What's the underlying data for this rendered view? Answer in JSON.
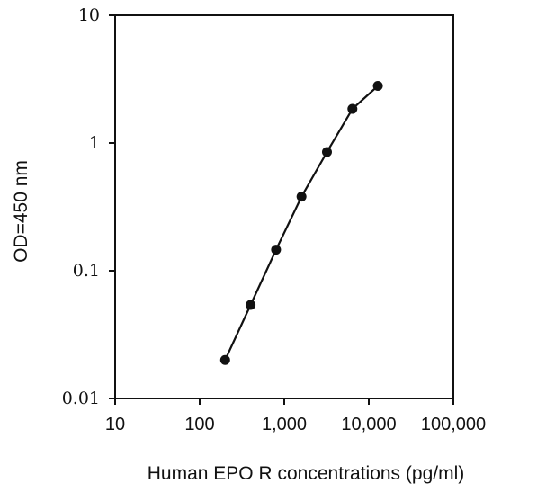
{
  "chart_data": {
    "type": "line",
    "title": "",
    "xlabel": "Human EPO R concentrations (pg/ml)",
    "ylabel": "OD=450 nm",
    "x_scale": "log",
    "y_scale": "log",
    "xlim": [
      10,
      100000
    ],
    "ylim": [
      0.01,
      10
    ],
    "x_ticks": [
      10,
      100,
      1000,
      10000,
      100000
    ],
    "x_tick_labels": [
      "10",
      "100",
      "1,000",
      "10,000",
      "100,000"
    ],
    "y_ticks": [
      0.01,
      0.1,
      1,
      10
    ],
    "y_tick_labels": [
      "0.01",
      "0.1",
      "1",
      "10"
    ],
    "grid": false,
    "legend": "none",
    "series": [
      {
        "x": [
          200,
          400,
          800,
          1600,
          3200,
          6400,
          12800
        ],
        "y": [
          0.02,
          0.054,
          0.146,
          0.38,
          0.85,
          1.85,
          2.8
        ]
      }
    ],
    "colors": {
      "line": "#111111",
      "marker": "#111111",
      "axis": "#111111"
    }
  }
}
